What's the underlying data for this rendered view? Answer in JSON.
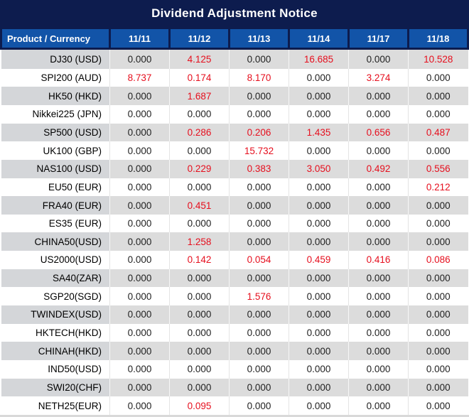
{
  "title": "Dividend Adjustment Notice",
  "colors": {
    "navy": "#0d1c4e",
    "header_blue": "#1254a8",
    "value_red": "#e60f1e",
    "stripe_gray": "#dcdcdc",
    "stripe_label_gray": "#d4d6d9",
    "row_white": "#ffffff"
  },
  "table": {
    "header": [
      "Product / Currency",
      "11/11",
      "11/12",
      "11/13",
      "11/14",
      "11/17",
      "11/18"
    ],
    "rows": [
      {
        "product": "DJ30 (USD)",
        "values": [
          "0.000",
          "4.125",
          "0.000",
          "16.685",
          "0.000",
          "10.528"
        ]
      },
      {
        "product": "SPI200 (AUD)",
        "values": [
          "8.737",
          "0.174",
          "8.170",
          "0.000",
          "3.274",
          "0.000"
        ]
      },
      {
        "product": "HK50 (HKD)",
        "values": [
          "0.000",
          "1.687",
          "0.000",
          "0.000",
          "0.000",
          "0.000"
        ]
      },
      {
        "product": "Nikkei225 (JPN)",
        "values": [
          "0.000",
          "0.000",
          "0.000",
          "0.000",
          "0.000",
          "0.000"
        ]
      },
      {
        "product": "SP500 (USD)",
        "values": [
          "0.000",
          "0.286",
          "0.206",
          "1.435",
          "0.656",
          "0.487"
        ]
      },
      {
        "product": "UK100 (GBP)",
        "values": [
          "0.000",
          "0.000",
          "15.732",
          "0.000",
          "0.000",
          "0.000"
        ]
      },
      {
        "product": "NAS100 (USD)",
        "values": [
          "0.000",
          "0.229",
          "0.383",
          "3.050",
          "0.492",
          "0.556"
        ]
      },
      {
        "product": "EU50 (EUR)",
        "values": [
          "0.000",
          "0.000",
          "0.000",
          "0.000",
          "0.000",
          "0.212"
        ]
      },
      {
        "product": "FRA40 (EUR)",
        "values": [
          "0.000",
          "0.451",
          "0.000",
          "0.000",
          "0.000",
          "0.000"
        ]
      },
      {
        "product": "ES35 (EUR)",
        "values": [
          "0.000",
          "0.000",
          "0.000",
          "0.000",
          "0.000",
          "0.000"
        ]
      },
      {
        "product": "CHINA50(USD)",
        "values": [
          "0.000",
          "1.258",
          "0.000",
          "0.000",
          "0.000",
          "0.000"
        ]
      },
      {
        "product": "US2000(USD)",
        "values": [
          "0.000",
          "0.142",
          "0.054",
          "0.459",
          "0.416",
          "0.086"
        ]
      },
      {
        "product": "SA40(ZAR)",
        "values": [
          "0.000",
          "0.000",
          "0.000",
          "0.000",
          "0.000",
          "0.000"
        ]
      },
      {
        "product": "SGP20(SGD)",
        "values": [
          "0.000",
          "0.000",
          "1.576",
          "0.000",
          "0.000",
          "0.000"
        ]
      },
      {
        "product": "TWINDEX(USD)",
        "values": [
          "0.000",
          "0.000",
          "0.000",
          "0.000",
          "0.000",
          "0.000"
        ]
      },
      {
        "product": "HKTECH(HKD)",
        "values": [
          "0.000",
          "0.000",
          "0.000",
          "0.000",
          "0.000",
          "0.000"
        ]
      },
      {
        "product": "CHINAH(HKD)",
        "values": [
          "0.000",
          "0.000",
          "0.000",
          "0.000",
          "0.000",
          "0.000"
        ]
      },
      {
        "product": "IND50(USD)",
        "values": [
          "0.000",
          "0.000",
          "0.000",
          "0.000",
          "0.000",
          "0.000"
        ]
      },
      {
        "product": "SWI20(CHF)",
        "values": [
          "0.000",
          "0.000",
          "0.000",
          "0.000",
          "0.000",
          "0.000"
        ]
      },
      {
        "product": "NETH25(EUR)",
        "values": [
          "0.000",
          "0.095",
          "0.000",
          "0.000",
          "0.000",
          "0.000"
        ]
      }
    ],
    "nonzero_value_color_rule": "values not equal to 0.000 are shown in red"
  }
}
